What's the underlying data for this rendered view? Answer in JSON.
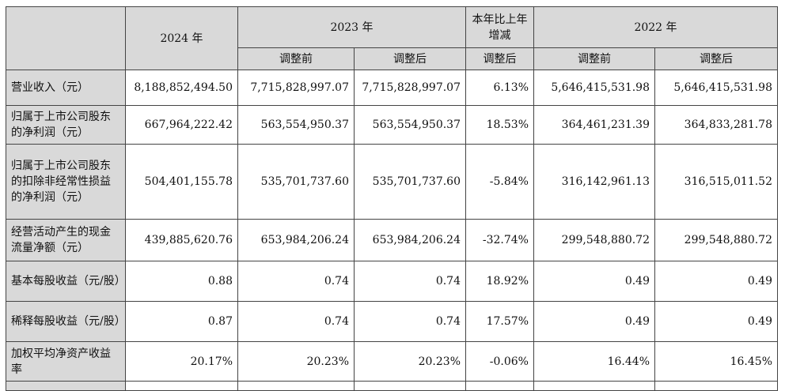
{
  "header": {
    "col_2024": "2024 年",
    "col_2023": "2023 年",
    "col_change": "本年比上年增减",
    "col_2022": "2022 年",
    "sub_before": "调整前",
    "sub_after": "调整后"
  },
  "rows": [
    {
      "label": "营业收入（元）",
      "v2024": "8,188,852,494.50",
      "v2023_before": "7,715,828,997.07",
      "v2023_after": "7,715,828,997.07",
      "change": "6.13%",
      "v2022_before": "5,646,415,531.98",
      "v2022_after": "5,646,415,531.98"
    },
    {
      "label": "归属于上市公司股东的净利润（元）",
      "v2024": "667,964,222.42",
      "v2023_before": "563,554,950.37",
      "v2023_after": "563,554,950.37",
      "change": "18.53%",
      "v2022_before": "364,461,231.39",
      "v2022_after": "364,833,281.78"
    },
    {
      "label": "归属于上市公司股东的扣除非经常性损益的净利润（元）",
      "v2024": "504,401,155.78",
      "v2023_before": "535,701,737.60",
      "v2023_after": "535,701,737.60",
      "change": "-5.84%",
      "v2022_before": "316,142,961.13",
      "v2022_after": "316,515,011.52"
    },
    {
      "label": "经营活动产生的现金流量净额（元）",
      "v2024": "439,885,620.76",
      "v2023_before": "653,984,206.24",
      "v2023_after": "653,984,206.24",
      "change": "-32.74%",
      "v2022_before": "299,548,880.72",
      "v2022_after": "299,548,880.72"
    },
    {
      "label": "基本每股收益（元/股）",
      "v2024": "0.88",
      "v2023_before": "0.74",
      "v2023_after": "0.74",
      "change": "18.92%",
      "v2022_before": "0.49",
      "v2022_after": "0.49"
    },
    {
      "label": "稀释每股收益（元/股）",
      "v2024": "0.87",
      "v2023_before": "0.74",
      "v2023_after": "0.74",
      "change": "17.57%",
      "v2022_before": "0.49",
      "v2022_after": "0.49"
    },
    {
      "label": "加权平均净资产收益率",
      "v2024": "20.17%",
      "v2023_before": "20.23%",
      "v2023_after": "20.23%",
      "change": "-0.06%",
      "v2022_before": "16.44%",
      "v2022_after": "16.45%"
    }
  ]
}
